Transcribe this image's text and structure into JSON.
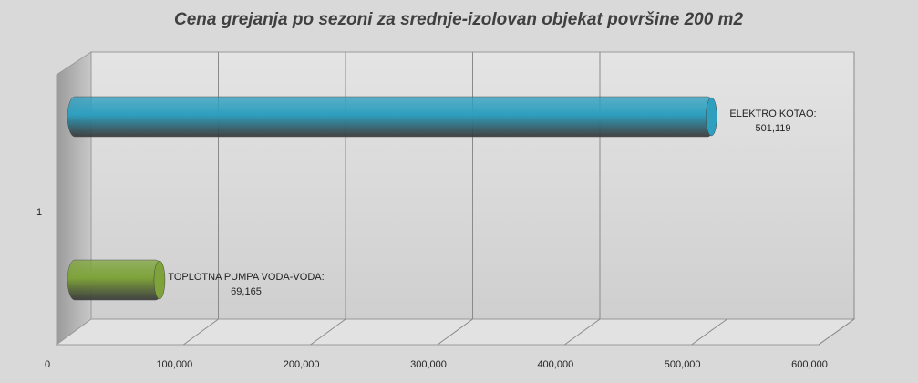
{
  "chart_data": {
    "type": "bar3d",
    "orientation": "horizontal",
    "title": "Cena grejanja po sezoni za srednje-izolovan objekat površine 200 m2",
    "categories": [
      "1"
    ],
    "series": [
      {
        "name": "TOPLOTNA PUMPA VODA-VODA:",
        "color": "#7ea33a",
        "values": [
          69165
        ],
        "value_labels": [
          "69,165"
        ]
      },
      {
        "name": "ELEKTRO KOTAO:",
        "color": "#2e9fbf",
        "values": [
          501119
        ],
        "value_labels": [
          "501,119"
        ]
      }
    ],
    "xlim": [
      0,
      600000
    ],
    "xticks": [
      0,
      {
        "value": 100000,
        "label": "100,000"
      },
      {
        "value": 200000,
        "label": "200,000"
      },
      {
        "value": 300000,
        "label": "300,000"
      },
      {
        "value": 400000,
        "label": "400,000"
      },
      {
        "value": 500000,
        "label": "500,000"
      },
      {
        "value": 600000,
        "label": "600,000"
      }
    ],
    "grid": true
  }
}
